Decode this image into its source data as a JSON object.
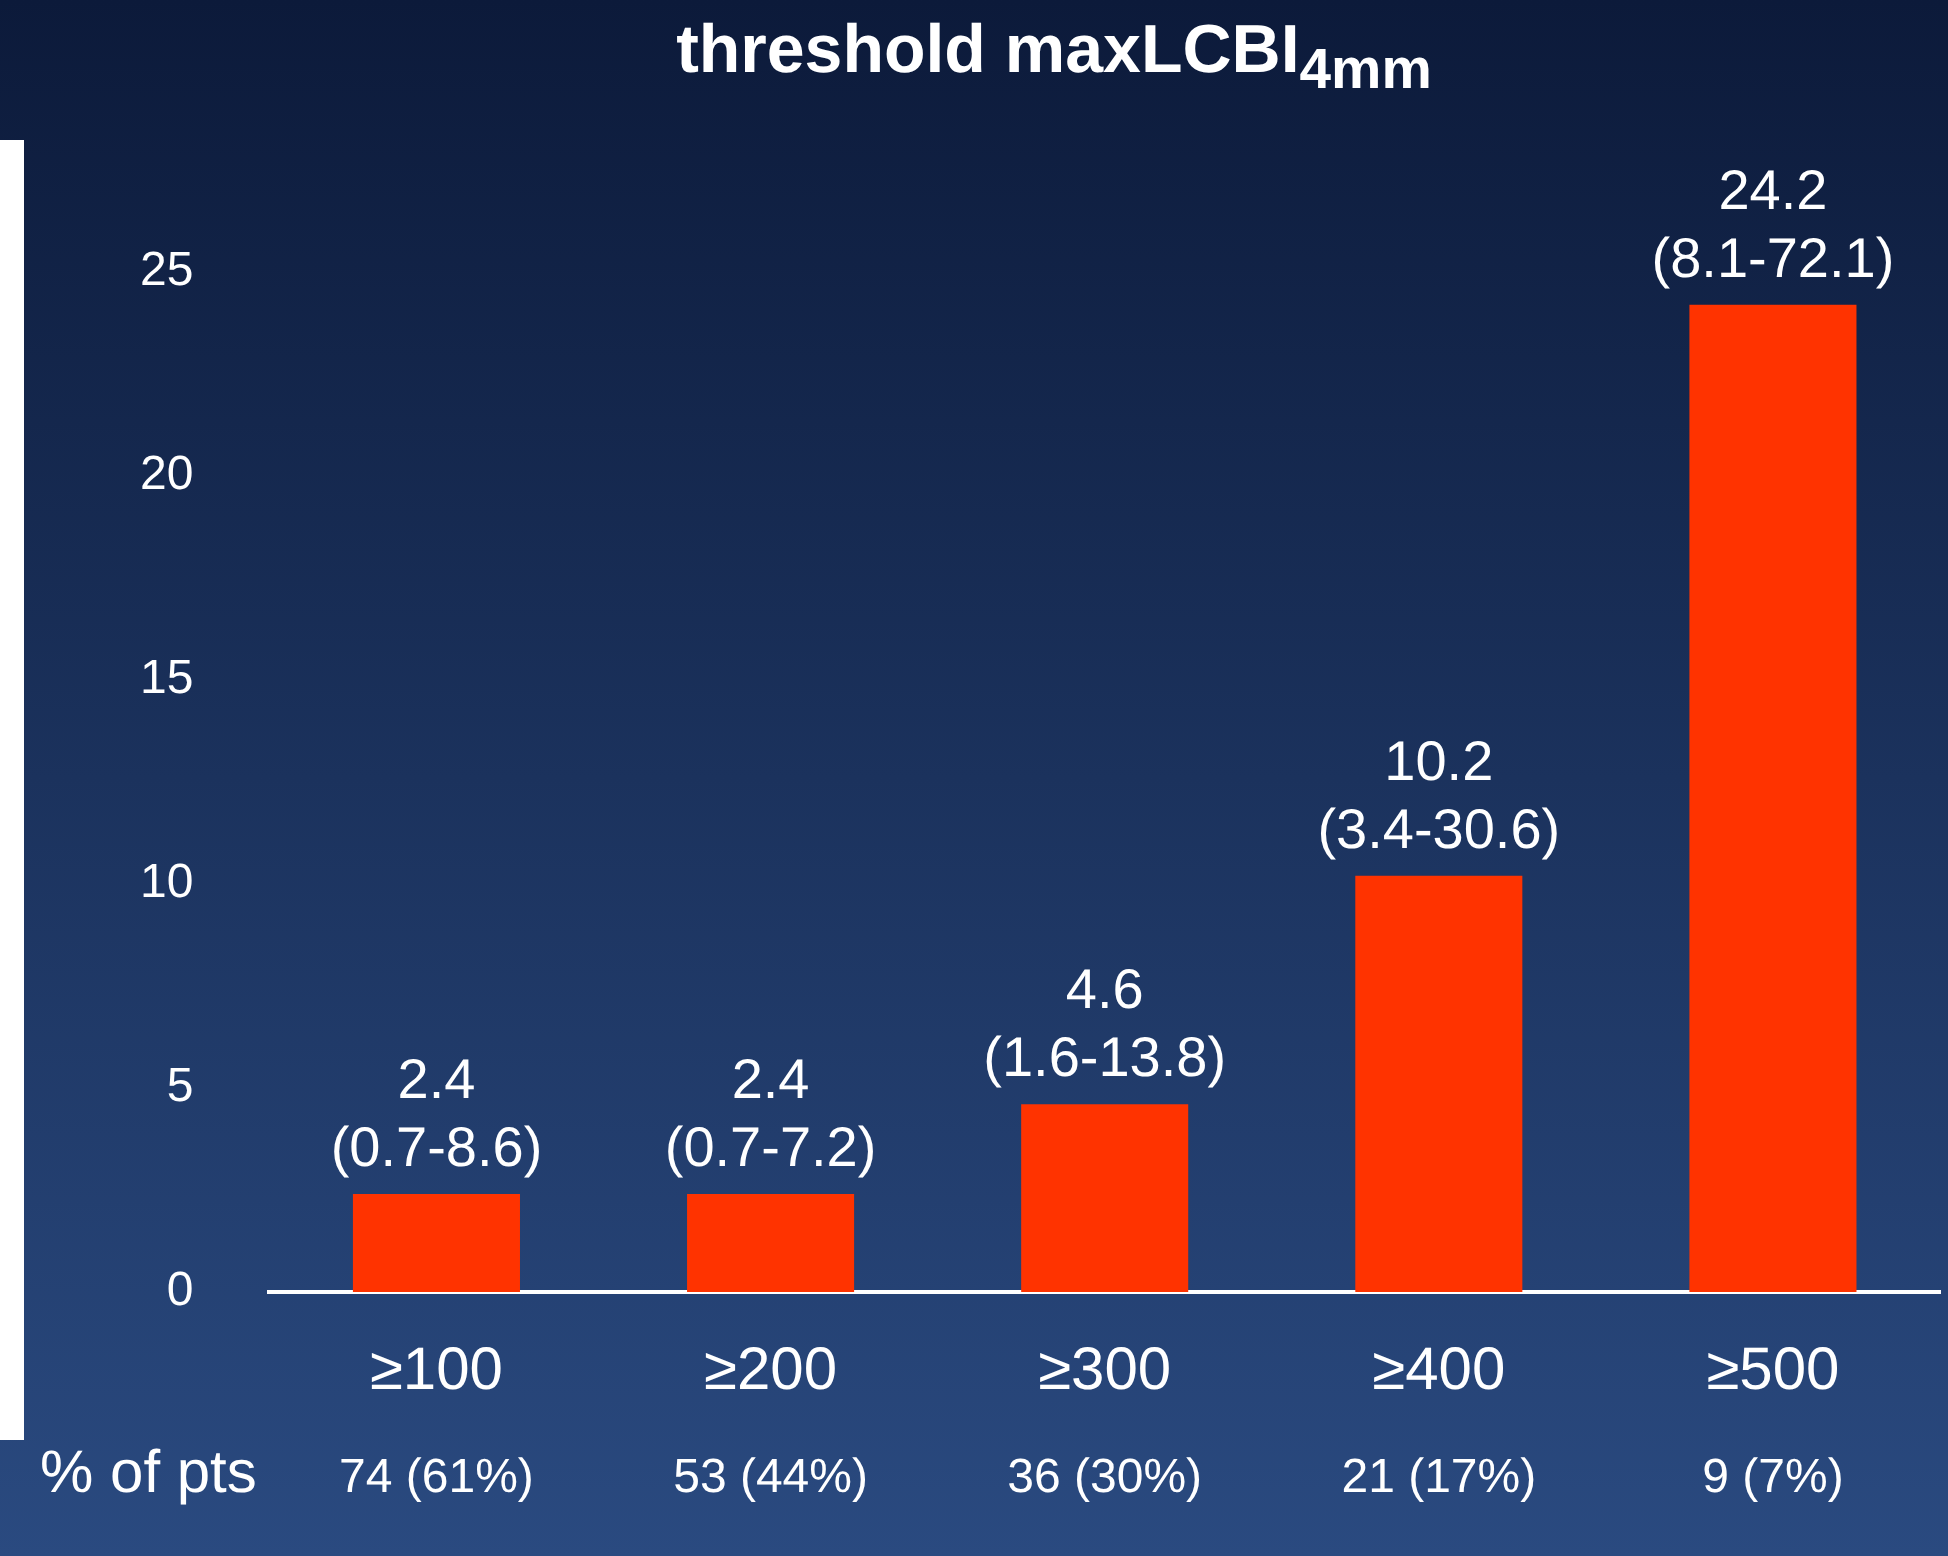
{
  "chart_data": {
    "type": "bar",
    "title": "threshold maxLCBI$_{4mm}$",
    "categories": [
      "≥100",
      "≥200",
      "≥300",
      "≥400",
      "≥500"
    ],
    "values": [
      2.4,
      2.4,
      4.6,
      10.2,
      24.2
    ],
    "value_labels": [
      "2.4 (0.7-8.6)",
      "2.4 (0.7-7.2)",
      "4.6 (1.6-13.8)",
      "10.2 (3.4-30.6)",
      "24.2 (8.1-72.1)"
    ],
    "color": "#ff3300",
    "ylim": [
      0,
      25
    ],
    "yticks": [
      0,
      5,
      10,
      15,
      20,
      25
    ],
    "grid": false,
    "legend": false,
    "annotations": [
      "% of pts",
      "74 (61%)",
      "53 (44%)",
      "36 (30%)",
      "21 (17%)",
      "9 (7%)"
    ]
  }
}
